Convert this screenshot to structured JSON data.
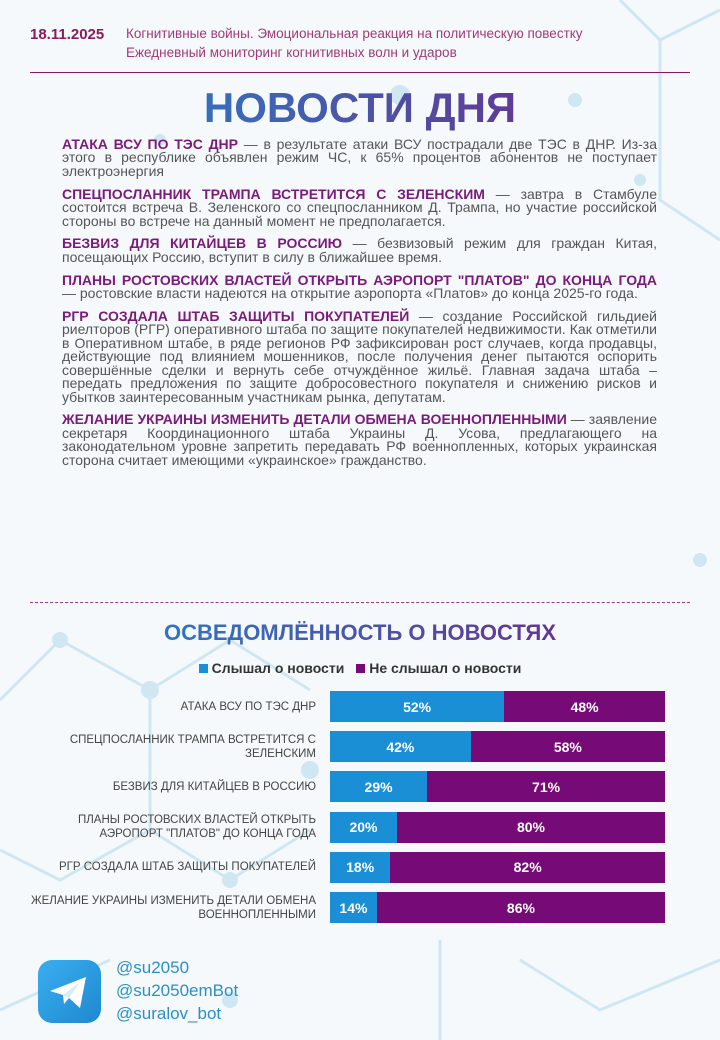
{
  "header": {
    "date": "18.11.2025",
    "subtitle1": "Когнитивные войны. Эмоциональная реакция на политическую повестку",
    "subtitle2": "Ежедневный мониторинг когнитивных волн и ударов"
  },
  "title": "НОВОСТИ ДНЯ",
  "news": [
    {
      "head": "АТАКА ВСУ ПО ТЭС ДНР",
      "body": " — в результате атаки ВСУ пострадали две ТЭС в ДНР. Из-за этого в республике объявлен режим ЧС, к 65% процентов абонентов не поступает электроэнергия"
    },
    {
      "head": "СПЕЦПОСЛАННИК ТРАМПА ВСТРЕТИТСЯ С ЗЕЛЕНСКИМ",
      "body": " — завтра в Стамбуле состоится встреча В. Зеленского со спецпосланником Д. Трампа, но участие российской стороны во встрече на данный момент не предполагается."
    },
    {
      "head": "БЕЗВИЗ ДЛЯ КИТАЙЦЕВ В РОССИЮ",
      "body": " — безвизовый режим для граждан Китая, посещающих Россию, вступит в силу в ближайшее время."
    },
    {
      "head": "ПЛАНЫ РОСТОВСКИХ ВЛАСТЕЙ ОТКРЫТЬ АЭРОПОРТ \"ПЛАТОВ\" ДО КОНЦА ГОДА",
      "body": " — ростовские власти надеются на открытие аэропорта «Платов» до конца 2025-го года."
    },
    {
      "head": "РГР СОЗДАЛА ШТАБ ЗАЩИТЫ ПОКУПАТЕЛЕЙ",
      "body": " — создание Российской гильдией риелторов (РГР) оперативного штаба по защите покупателей недвижимости. Как отметили в Оперативном штабе, в ряде регионов РФ зафиксирован рост случаев, когда продавцы, действующие под влиянием мошенников, после получения денег пытаются оспорить совершённые сделки и вернуть себе отчуждённое жильё. Главная задача штаба – передать предложения по защите добросовестного покупателя и снижению рисков и убытков заинтересованным участникам рынка, депутатам."
    },
    {
      "head": "ЖЕЛАНИЕ УКРАИНЫ ИЗМЕНИТЬ ДЕТАЛИ ОБМЕНА ВОЕННОПЛЕННЫМИ",
      "body": " — заявление секретаря Координационного штаба Украины Д. Усова, предлагающего на законодательном уровне запретить передавать РФ военнопленных, которых украинская сторона считает имеющими «украинское» гражданство."
    }
  ],
  "chart_data": {
    "type": "bar",
    "stacked": true,
    "orientation": "horizontal",
    "title": "ОСВЕДОМЛЁННОСТЬ О НОВОСТЯХ",
    "legend_position": "top",
    "categories": [
      "АТАКА ВСУ ПО ТЭС ДНР",
      "СПЕЦПОСЛАННИК ТРАМПА ВСТРЕТИТСЯ С ЗЕЛЕНСКИМ",
      "БЕЗВИЗ ДЛЯ КИТАЙЦЕВ В РОССИЮ",
      "ПЛАНЫ РОСТОВСКИХ ВЛАСТЕЙ ОТКРЫТЬ АЭРОПОРТ \"ПЛАТОВ\" ДО КОНЦА ГОДА",
      "РГР СОЗДАЛА ШТАБ ЗАЩИТЫ ПОКУПАТЕЛЕЙ",
      "ЖЕЛАНИЕ УКРАИНЫ ИЗМЕНИТЬ ДЕТАЛИ ОБМЕНА ВОЕННОПЛЕННЫМИ"
    ],
    "series": [
      {
        "name": "Слышал о новости",
        "color": "#1a8fd6",
        "values": [
          52,
          42,
          29,
          20,
          18,
          14
        ]
      },
      {
        "name": "Не слышал о новости",
        "color": "#760a76",
        "values": [
          48,
          58,
          71,
          80,
          82,
          86
        ]
      }
    ],
    "unit": "%",
    "xlim": [
      0,
      100
    ]
  },
  "footer": {
    "icon": "telegram-icon",
    "handles": [
      "@su2050",
      "@su2050emBot",
      "@suralov_bot"
    ]
  }
}
